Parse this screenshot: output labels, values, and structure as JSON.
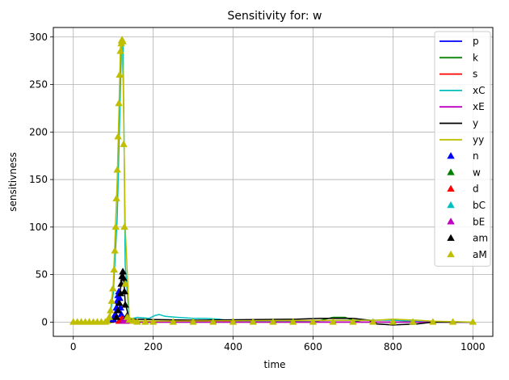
{
  "chart_data": {
    "type": "line",
    "title": "Sensitivity for: w",
    "xlabel": "time",
    "ylabel": "sensitivness",
    "xlim": [
      -50,
      1050
    ],
    "ylim": [
      -15,
      310
    ],
    "xticks": [
      0,
      200,
      400,
      600,
      800,
      1000
    ],
    "yticks": [
      0,
      50,
      100,
      150,
      200,
      250,
      300
    ],
    "grid": true,
    "legend_position": "top-right",
    "line_series": [
      {
        "name": "p",
        "color": "#0000ff",
        "points": [
          [
            0,
            0
          ],
          [
            95,
            0
          ],
          [
            105,
            12
          ],
          [
            112,
            30
          ],
          [
            118,
            8
          ],
          [
            125,
            0
          ],
          [
            1000,
            0
          ]
        ]
      },
      {
        "name": "k",
        "color": "#008000",
        "points": [
          [
            0,
            0
          ],
          [
            600,
            0
          ],
          [
            630,
            3
          ],
          [
            650,
            5
          ],
          [
            680,
            5
          ],
          [
            700,
            2
          ],
          [
            720,
            0
          ],
          [
            1000,
            0
          ]
        ]
      },
      {
        "name": "s",
        "color": "#ff0000",
        "points": [
          [
            0,
            0
          ],
          [
            100,
            0
          ],
          [
            110,
            4
          ],
          [
            120,
            2
          ],
          [
            140,
            0
          ],
          [
            1000,
            0
          ]
        ]
      },
      {
        "name": "xC",
        "color": "#00bfbf",
        "points": [
          [
            0,
            0
          ],
          [
            90,
            0
          ],
          [
            100,
            30
          ],
          [
            110,
            110
          ],
          [
            117,
            230
          ],
          [
            121,
            298
          ],
          [
            124,
            298
          ],
          [
            127,
            200
          ],
          [
            130,
            60
          ],
          [
            140,
            3
          ],
          [
            160,
            5
          ],
          [
            190,
            4
          ],
          [
            205,
            7
          ],
          [
            215,
            8
          ],
          [
            230,
            6
          ],
          [
            260,
            5
          ],
          [
            300,
            4
          ],
          [
            330,
            4
          ],
          [
            365,
            3
          ],
          [
            380,
            2
          ],
          [
            400,
            1
          ],
          [
            500,
            1
          ],
          [
            700,
            2
          ],
          [
            800,
            2
          ],
          [
            900,
            0
          ],
          [
            1000,
            0
          ]
        ]
      },
      {
        "name": "xE",
        "color": "#bf00bf",
        "points": [
          [
            0,
            0
          ],
          [
            120,
            0
          ],
          [
            130,
            2
          ],
          [
            145,
            0
          ],
          [
            1000,
            0
          ]
        ]
      },
      {
        "name": "y",
        "color": "#000000",
        "points": [
          [
            0,
            0
          ],
          [
            100,
            0
          ],
          [
            110,
            15
          ],
          [
            118,
            35
          ],
          [
            125,
            55
          ],
          [
            130,
            20
          ],
          [
            140,
            3
          ],
          [
            300,
            2
          ],
          [
            560,
            3
          ],
          [
            620,
            4
          ],
          [
            700,
            4
          ],
          [
            740,
            2
          ],
          [
            760,
            -2
          ],
          [
            800,
            -3
          ],
          [
            860,
            -2
          ],
          [
            900,
            0
          ],
          [
            1000,
            0
          ]
        ]
      },
      {
        "name": "yy",
        "color": "#bfbf00",
        "points": [
          [
            0,
            0
          ],
          [
            90,
            0
          ],
          [
            100,
            40
          ],
          [
            110,
            150
          ],
          [
            118,
            290
          ],
          [
            121,
            297
          ],
          [
            125,
            250
          ],
          [
            130,
            100
          ],
          [
            140,
            5
          ],
          [
            160,
            1
          ],
          [
            760,
            2
          ],
          [
            800,
            3
          ],
          [
            860,
            2
          ],
          [
            900,
            1
          ],
          [
            1000,
            0
          ]
        ]
      }
    ],
    "scatter_series": [
      {
        "name": "n",
        "color": "#0000ff",
        "x": [
          100,
          105,
          108,
          110,
          112,
          114,
          116,
          118,
          120,
          125
        ],
        "y": [
          3,
          8,
          15,
          22,
          28,
          32,
          25,
          15,
          8,
          2
        ]
      },
      {
        "name": "w",
        "color": "#008000",
        "x": [],
        "y": []
      },
      {
        "name": "d",
        "color": "#ff0000",
        "x": [
          115,
          120,
          125,
          130
        ],
        "y": [
          1,
          3,
          2,
          1
        ]
      },
      {
        "name": "bC",
        "color": "#00bfbf",
        "x": [
          130,
          135,
          140
        ],
        "y": [
          3,
          2,
          1
        ]
      },
      {
        "name": "bE",
        "color": "#bf00bf",
        "x": [
          125,
          130,
          135,
          140
        ],
        "y": [
          1,
          3,
          2,
          1
        ]
      },
      {
        "name": "am",
        "color": "#000000",
        "x": [
          108,
          112,
          115,
          118,
          120,
          122,
          124,
          126,
          128,
          130,
          134
        ],
        "y": [
          5,
          12,
          20,
          30,
          40,
          48,
          53,
          46,
          32,
          18,
          6
        ]
      },
      {
        "name": "aM",
        "color": "#bfbf00",
        "x": [
          0,
          10,
          20,
          30,
          40,
          50,
          60,
          70,
          80,
          85,
          90,
          93,
          96,
          99,
          102,
          104,
          106,
          108,
          110,
          112,
          114,
          116,
          118,
          120,
          121,
          122,
          124,
          126,
          128,
          130,
          135,
          140,
          150,
          160,
          180,
          200,
          250,
          300,
          350,
          400,
          450,
          500,
          550,
          600,
          650,
          700,
          750,
          800,
          850,
          900,
          950,
          1000
        ],
        "y": [
          0,
          0,
          0,
          0,
          0,
          0,
          0,
          0,
          0,
          1,
          5,
          12,
          22,
          35,
          55,
          75,
          100,
          130,
          160,
          195,
          230,
          260,
          285,
          293,
          296,
          297,
          295,
          187,
          100,
          40,
          5,
          2,
          1,
          0,
          0,
          0,
          0,
          0,
          0,
          0,
          0,
          0,
          0,
          0,
          0,
          0,
          0,
          0,
          0,
          0,
          0,
          0
        ]
      }
    ]
  }
}
